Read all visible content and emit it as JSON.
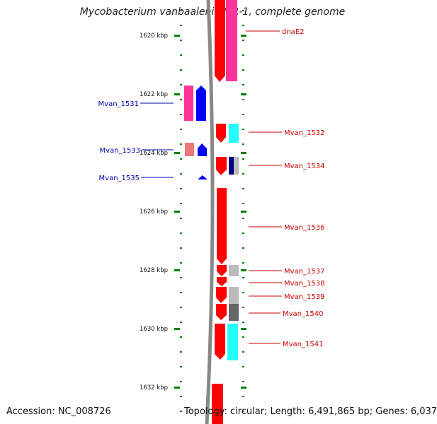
{
  "title": "Mycobacterium vanbaalenii PYR-1, complete genome",
  "accession_text": "Accession: NC_008726",
  "topology_text": "Topology: circular; Length: 6,491,865 bp; Genes: 6,037",
  "colors": {
    "forward_strand": "#ff0000",
    "forward_label": "#cc0000",
    "reverse_strand": "#0000ff",
    "reverse_label": "#0000aa",
    "pink": "#ff3399",
    "cyan": "#22ffff",
    "salmon": "#ee7777",
    "navy": "#000080",
    "light_gray": "#bbbbbb",
    "dark_gray": "#666666",
    "backbone": "#888888",
    "ticks": "#008000"
  },
  "kbp_labels": [
    "1620 kbp",
    "1622 kbp",
    "1624 kbp",
    "1626 kbp",
    "1628 kbp",
    "1630 kbp",
    "1632 kbp"
  ],
  "genes_right": [
    "dnaE2",
    "Mvan_1532",
    "Mvan_1534",
    "Mvan_1536",
    "Mvan_1537",
    "Mvan_1538",
    "Mvan_1539",
    "Mvan_1540",
    "Mvan_1541"
  ],
  "genes_left": [
    "Mvan_1531",
    "Mvan_1533",
    "Mvan_1535"
  ]
}
